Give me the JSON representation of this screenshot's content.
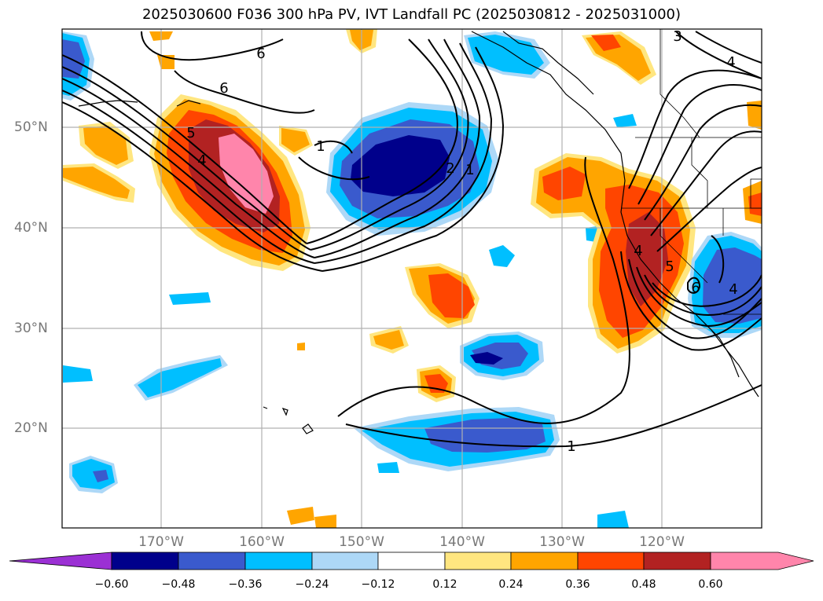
{
  "title": "2025030600 F036 300 hPa PV, IVT Landfall PC (2025030812 - 2025031000)",
  "latitude_labels": [
    "50°N",
    "40°N",
    "30°N",
    "20°N"
  ],
  "longitude_labels": [
    "170°W",
    "160°W",
    "150°W",
    "140°W",
    "130°W",
    "120°W"
  ],
  "colorbar": {
    "ticks": [
      "−0.60",
      "−0.48",
      "−0.36",
      "−0.24",
      "−0.12",
      "0.12",
      "0.24",
      "0.36",
      "0.48",
      "0.60"
    ],
    "colors": [
      "#9b30d4",
      "#00008b",
      "#3a5acd",
      "#00bfff",
      "#add8f7",
      "#ffffff",
      "#ffe680",
      "#ffa500",
      "#ff4500",
      "#b22222",
      "#ff85ab"
    ]
  },
  "contour_labels": [
    "6",
    "6",
    "5",
    "4",
    "1",
    "2",
    "1",
    "3",
    "4",
    "4",
    "5",
    "6",
    "4",
    "1"
  ]
}
